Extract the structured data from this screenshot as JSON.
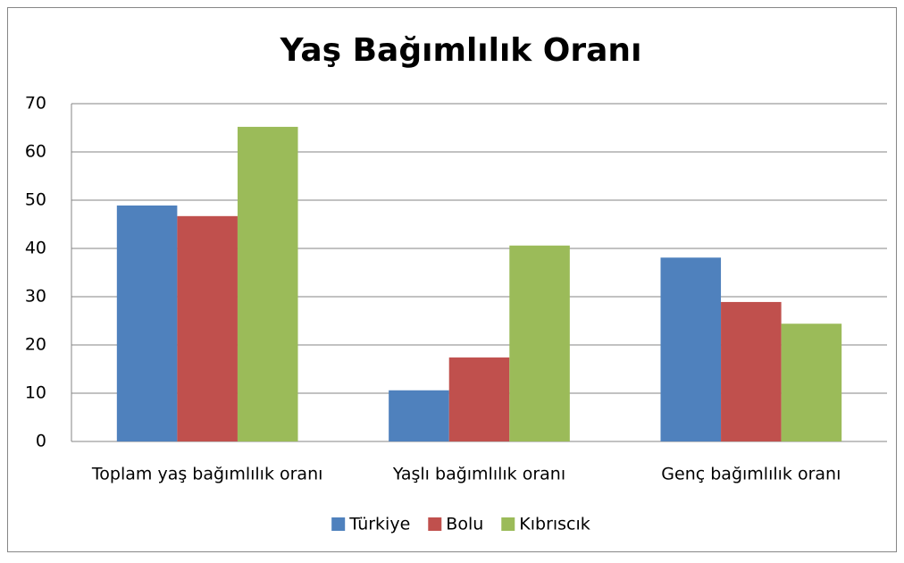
{
  "chart_data": {
    "type": "bar",
    "title": "Yaş Bağımlılık Oranı",
    "categories": [
      "Toplam yaş bağımlılık oranı",
      "Yaşlı bağımlılık oranı",
      "Genç bağımlılık oranı"
    ],
    "series": [
      {
        "name": "Türkiye",
        "color": "#4f81bd",
        "values": [
          48.9,
          10.6,
          38.1
        ]
      },
      {
        "name": "Bolu",
        "color": "#c0504d",
        "values": [
          46.7,
          17.4,
          28.9
        ]
      },
      {
        "name": "Kıbrıscık",
        "color": "#9bbb59",
        "values": [
          65.2,
          40.6,
          24.4
        ]
      }
    ],
    "ylim": [
      0,
      70
    ],
    "yticks": [
      0,
      10,
      20,
      30,
      40,
      50,
      60,
      70
    ],
    "grid": true,
    "legend": "bottom"
  }
}
